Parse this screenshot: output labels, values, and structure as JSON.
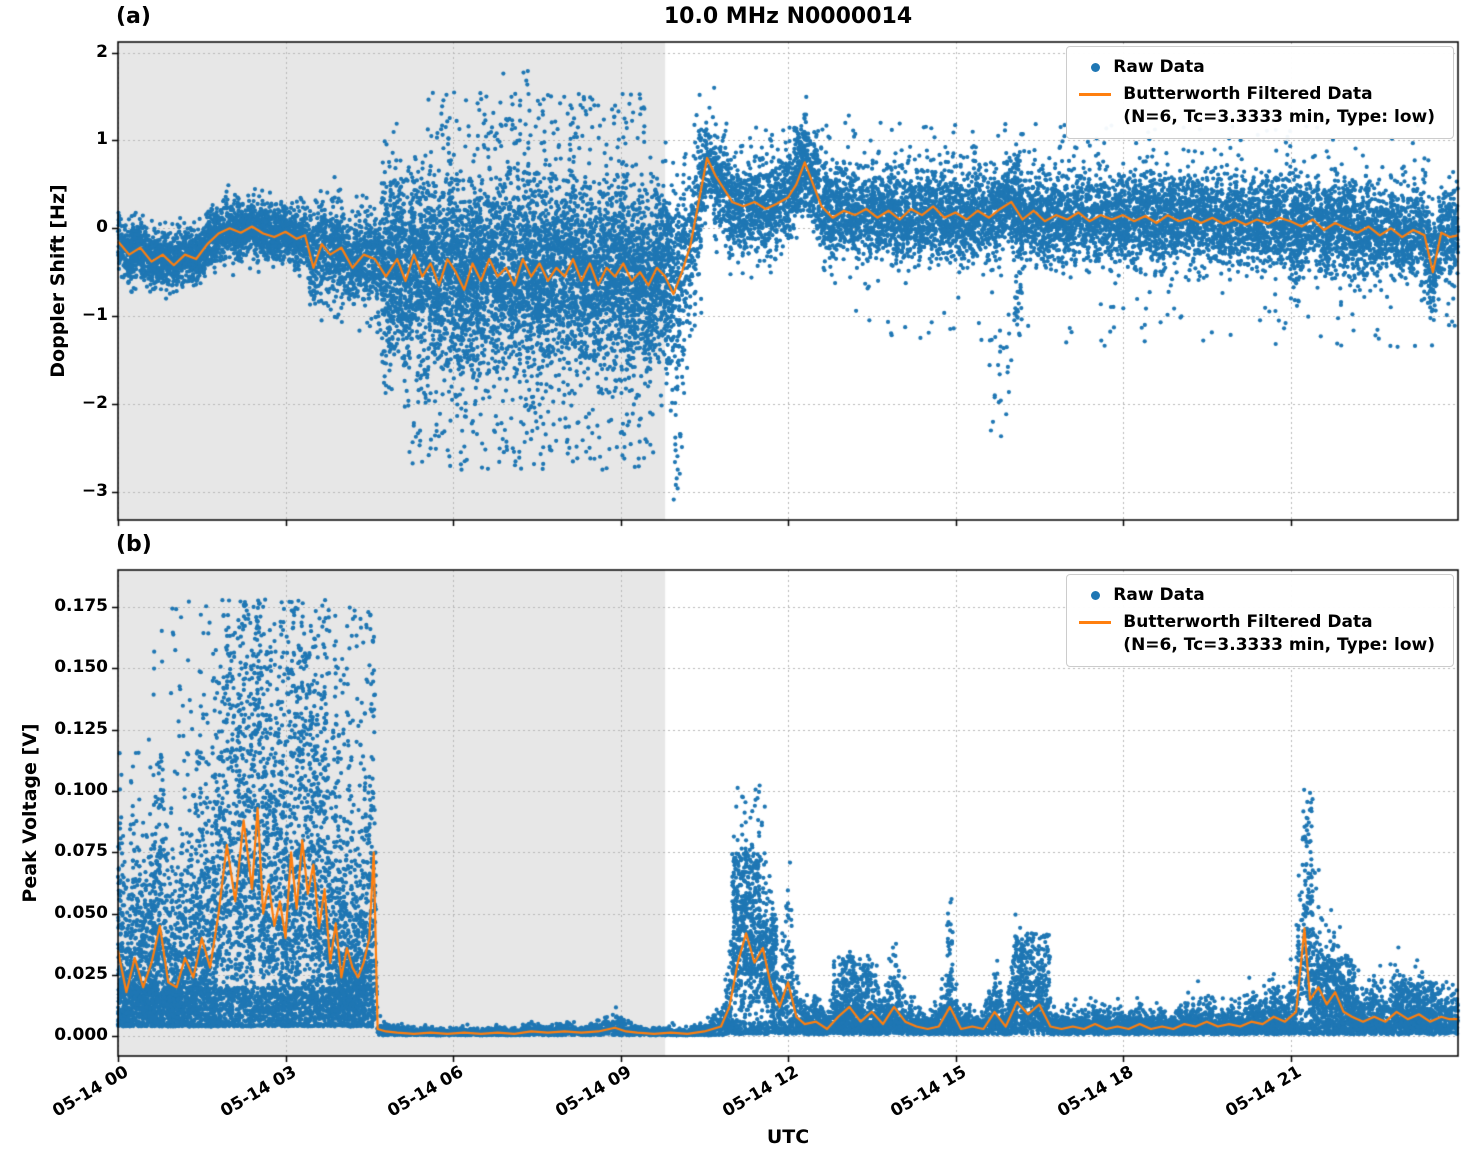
{
  "figure": {
    "title": "10.0 MHz N0000014",
    "xlabel": "UTC",
    "panels": [
      {
        "tag": "(a)",
        "ylabel": "Doppler Shift [Hz]"
      },
      {
        "tag": "(b)",
        "ylabel": "Peak Voltage [V]"
      }
    ],
    "legend": {
      "raw_label": "Raw Data",
      "filtered_label": "Butterworth Filtered Data",
      "filtered_params": "(N=6, Tc=3.3333 min, Type: low)"
    },
    "colors": {
      "raw": "#1f77b4",
      "filtered": "#ff7f0e",
      "shade": "#e7e7e7",
      "grid": "#b8b8b8",
      "spine": "#000000"
    }
  },
  "chart_data": [
    {
      "type": "scatter",
      "panel": "a",
      "title": "10.0 MHz N0000014",
      "ylabel": "Doppler Shift [Hz]",
      "x_unit": "hours after 05-14 00:00 UTC",
      "xlim": [
        0,
        24
      ],
      "ylim": [
        -3.32,
        2.12
      ],
      "yticks": [
        2,
        1,
        0,
        -1,
        -2,
        -3
      ],
      "ytick_labels": [
        "2",
        "1",
        "0",
        "−1",
        "−2",
        "−3"
      ],
      "xticks_hours": [
        0,
        3,
        6,
        9,
        12,
        15,
        18,
        21
      ],
      "xtick_labels": [
        "05-14 00",
        "05-14 03",
        "05-14 06",
        "05-14 09",
        "05-14 12",
        "05-14 15",
        "05-14 18",
        "05-14 21"
      ],
      "shaded_region_hours": [
        0,
        9.8
      ],
      "grid": true,
      "legend_position": "upper right",
      "series": [
        {
          "name": "Raw Data",
          "type": "scatter",
          "color": "#1f77b4",
          "note": "dense noisy cloud around filtered line; reconstructed from envelope",
          "envelope_segments": [
            {
              "x0": 0,
              "x1": 3.4,
              "n": 2600,
              "sd": 0.16
            },
            {
              "x0": 3.4,
              "x1": 4.7,
              "n": 900,
              "sd": 0.28
            },
            {
              "x0": 4.7,
              "x1": 9.95,
              "n": 6000,
              "sd": 0.55
            },
            {
              "x0": 9.95,
              "x1": 10.45,
              "n": 320,
              "sd": 0.5
            },
            {
              "x0": 10.45,
              "x1": 24,
              "n": 9000,
              "sd": 0.27
            }
          ],
          "outlier_clusters": [
            {
              "x0": 5.2,
              "x1": 9.6,
              "n": 260,
              "ymin": -2.75,
              "ymax": -1.3
            },
            {
              "x0": 5.5,
              "x1": 9.5,
              "n": 130,
              "ymin": 0.9,
              "ymax": 1.55
            },
            {
              "x0": 7.25,
              "x1": 7.4,
              "n": 4,
              "ymin": 1.6,
              "ymax": 1.9
            },
            {
              "x0": 9.95,
              "x1": 10.15,
              "n": 30,
              "ymin": -3.1,
              "ymax": -1.2
            },
            {
              "x0": 12.0,
              "x1": 12.6,
              "n": 40,
              "ymin": 0.8,
              "ymax": 1.15
            },
            {
              "x0": 15.6,
              "x1": 16.0,
              "n": 25,
              "ymin": -2.4,
              "ymax": -0.95
            },
            {
              "x0": 13.0,
              "x1": 23.9,
              "n": 70,
              "ymin": -1.35,
              "ymax": -0.85
            },
            {
              "x0": 10.5,
              "x1": 23.9,
              "n": 90,
              "ymin": 0.75,
              "ymax": 1.2
            },
            {
              "x0": 16.05,
              "x1": 16.2,
              "n": 80,
              "ymin": -1.1,
              "ymax": 0.9
            },
            {
              "x0": 21.0,
              "x1": 21.15,
              "n": 60,
              "ymin": -0.9,
              "ymax": 0.8
            }
          ]
        },
        {
          "name": "Butterworth Filtered Data (N=6, Tc=3.3333 min, Type: low)",
          "type": "line",
          "color": "#ff7f0e",
          "x": [
            0,
            0.2,
            0.4,
            0.6,
            0.8,
            1.0,
            1.2,
            1.4,
            1.6,
            1.8,
            2.0,
            2.2,
            2.4,
            2.6,
            2.8,
            3.0,
            3.2,
            3.35,
            3.5,
            3.65,
            3.8,
            4.0,
            4.2,
            4.4,
            4.6,
            4.8,
            5.0,
            5.15,
            5.3,
            5.45,
            5.6,
            5.75,
            5.9,
            6.05,
            6.2,
            6.35,
            6.5,
            6.65,
            6.8,
            6.95,
            7.1,
            7.25,
            7.4,
            7.55,
            7.7,
            7.85,
            8.0,
            8.15,
            8.3,
            8.45,
            8.6,
            8.75,
            8.9,
            9.05,
            9.2,
            9.35,
            9.5,
            9.65,
            9.8,
            9.95,
            10.1,
            10.25,
            10.4,
            10.55,
            10.7,
            10.85,
            11.0,
            11.2,
            11.4,
            11.6,
            11.8,
            12.0,
            12.15,
            12.3,
            12.45,
            12.6,
            12.8,
            13.0,
            13.2,
            13.4,
            13.6,
            13.8,
            14.0,
            14.2,
            14.4,
            14.6,
            14.8,
            15.0,
            15.2,
            15.4,
            15.6,
            15.8,
            16.0,
            16.2,
            16.4,
            16.6,
            16.8,
            17.0,
            17.2,
            17.4,
            17.6,
            17.8,
            18.0,
            18.2,
            18.4,
            18.6,
            18.8,
            19.0,
            19.2,
            19.4,
            19.6,
            19.8,
            20.0,
            20.2,
            20.4,
            20.6,
            20.8,
            21.0,
            21.2,
            21.4,
            21.6,
            21.8,
            22.0,
            22.2,
            22.4,
            22.6,
            22.8,
            23.0,
            23.2,
            23.4,
            23.55,
            23.7,
            23.85,
            24.0
          ],
          "y": [
            -0.15,
            -0.3,
            -0.22,
            -0.38,
            -0.3,
            -0.42,
            -0.3,
            -0.35,
            -0.18,
            -0.06,
            0.0,
            -0.05,
            0.02,
            -0.06,
            -0.1,
            -0.04,
            -0.12,
            -0.08,
            -0.45,
            -0.18,
            -0.3,
            -0.22,
            -0.45,
            -0.3,
            -0.35,
            -0.55,
            -0.35,
            -0.6,
            -0.3,
            -0.55,
            -0.4,
            -0.65,
            -0.35,
            -0.5,
            -0.7,
            -0.4,
            -0.6,
            -0.35,
            -0.55,
            -0.45,
            -0.65,
            -0.35,
            -0.55,
            -0.4,
            -0.6,
            -0.45,
            -0.55,
            -0.35,
            -0.6,
            -0.4,
            -0.65,
            -0.45,
            -0.55,
            -0.4,
            -0.6,
            -0.5,
            -0.65,
            -0.45,
            -0.55,
            -0.75,
            -0.5,
            -0.2,
            0.3,
            0.8,
            0.6,
            0.45,
            0.3,
            0.25,
            0.3,
            0.22,
            0.28,
            0.35,
            0.5,
            0.75,
            0.5,
            0.25,
            0.12,
            0.2,
            0.15,
            0.22,
            0.12,
            0.2,
            0.1,
            0.22,
            0.15,
            0.25,
            0.12,
            0.18,
            0.1,
            0.2,
            0.12,
            0.22,
            0.3,
            0.1,
            0.2,
            0.08,
            0.15,
            0.1,
            0.18,
            0.08,
            0.15,
            0.1,
            0.15,
            0.08,
            0.14,
            0.06,
            0.15,
            0.08,
            0.12,
            0.06,
            0.12,
            0.05,
            0.1,
            0.04,
            0.1,
            0.05,
            0.12,
            0.08,
            0.02,
            0.1,
            -0.02,
            0.06,
            0.0,
            -0.05,
            0.02,
            -0.08,
            0.0,
            -0.1,
            -0.02,
            -0.08,
            -0.5,
            -0.05,
            -0.1,
            -0.08
          ]
        }
      ]
    },
    {
      "type": "scatter",
      "panel": "b",
      "ylabel": "Peak Voltage [V]",
      "xlabel": "UTC",
      "x_unit": "hours after 05-14 00:00 UTC",
      "xlim": [
        0,
        24
      ],
      "ylim": [
        -0.008,
        0.19
      ],
      "yticks": [
        0.175,
        0.15,
        0.125,
        0.1,
        0.075,
        0.05,
        0.025,
        0
      ],
      "ytick_labels": [
        "0.175",
        "0.150",
        "0.125",
        "0.100",
        "0.075",
        "0.050",
        "0.025",
        "0.000"
      ],
      "xticks_hours": [
        0,
        3,
        6,
        9,
        12,
        15,
        18,
        21
      ],
      "xtick_labels": [
        "05-14 00",
        "05-14 03",
        "05-14 06",
        "05-14 09",
        "05-14 12",
        "05-14 15",
        "05-14 18",
        "05-14 21"
      ],
      "shaded_region_hours": [
        0,
        9.8
      ],
      "grid": true,
      "legend_position": "upper right",
      "series": [
        {
          "name": "Raw Data",
          "type": "scatter",
          "color": "#1f77b4",
          "note": "spread proportional to filtered value; reconstructed from envelope",
          "envelope_segments": [
            {
              "x0": 0,
              "x1": 4.62,
              "n": 5200,
              "up": 1.1,
              "dn": 0.55,
              "cap": 0.178,
              "floor": 0.004
            },
            {
              "x0": 4.62,
              "x1": 10.85,
              "n": 2400,
              "up": 0.9,
              "dn": 0.5,
              "cap": 0.012,
              "floor": 0.0004
            },
            {
              "x0": 10.85,
              "x1": 24,
              "n": 6500,
              "up": 1.0,
              "dn": 0.55,
              "cap": 0.105,
              "floor": 0.0008
            }
          ],
          "outlier_clusters": [
            {
              "x0": 0,
              "x1": 4.6,
              "n": 1600,
              "ymin": 0.004,
              "ymax": 0.02
            },
            {
              "x0": 0.9,
              "x1": 4.55,
              "n": 250,
              "ymin": 0.09,
              "ymax": 0.178
            },
            {
              "x0": 11.0,
              "x1": 11.5,
              "n": 320,
              "ymin": 0.025,
              "ymax": 0.075
            },
            {
              "x0": 11.5,
              "x1": 11.8,
              "n": 130,
              "ymin": 0.015,
              "ymax": 0.05
            },
            {
              "x0": 12.8,
              "x1": 13.5,
              "n": 160,
              "ymin": 0.008,
              "ymax": 0.033
            },
            {
              "x0": 14.85,
              "x1": 14.95,
              "n": 45,
              "ymin": 0.01,
              "ymax": 0.057
            },
            {
              "x0": 16.0,
              "x1": 16.7,
              "n": 200,
              "ymin": 0.008,
              "ymax": 0.042
            },
            {
              "x0": 21.25,
              "x1": 21.4,
              "n": 70,
              "ymin": 0.02,
              "ymax": 0.1
            },
            {
              "x0": 21.45,
              "x1": 22.15,
              "n": 220,
              "ymin": 0.006,
              "ymax": 0.033
            },
            {
              "x0": 22.85,
              "x1": 23.6,
              "n": 160,
              "ymin": 0.005,
              "ymax": 0.022
            },
            {
              "x0": 10.85,
              "x1": 24,
              "n": 1800,
              "ymin": 0.001,
              "ymax": 0.006
            }
          ]
        },
        {
          "name": "Butterworth Filtered Data (N=6, Tc=3.3333 min, Type: low)",
          "type": "line",
          "color": "#ff7f0e",
          "x": [
            0,
            0.15,
            0.3,
            0.45,
            0.6,
            0.75,
            0.9,
            1.05,
            1.2,
            1.35,
            1.5,
            1.65,
            1.8,
            1.95,
            2.1,
            2.25,
            2.4,
            2.5,
            2.6,
            2.7,
            2.8,
            2.9,
            3.0,
            3.1,
            3.2,
            3.3,
            3.4,
            3.5,
            3.6,
            3.7,
            3.8,
            3.9,
            4.0,
            4.1,
            4.2,
            4.3,
            4.4,
            4.5,
            4.58,
            4.65,
            4.8,
            5.0,
            5.3,
            5.6,
            5.9,
            6.2,
            6.5,
            6.8,
            7.1,
            7.4,
            7.7,
            8.0,
            8.3,
            8.6,
            8.9,
            9.1,
            9.3,
            9.6,
            9.9,
            10.2,
            10.5,
            10.8,
            10.95,
            11.1,
            11.25,
            11.4,
            11.55,
            11.7,
            11.85,
            12.0,
            12.15,
            12.3,
            12.5,
            12.7,
            12.9,
            13.1,
            13.3,
            13.5,
            13.7,
            13.9,
            14.1,
            14.3,
            14.5,
            14.7,
            14.9,
            15.1,
            15.3,
            15.5,
            15.7,
            15.9,
            16.1,
            16.3,
            16.5,
            16.7,
            16.9,
            17.1,
            17.3,
            17.5,
            17.7,
            17.9,
            18.1,
            18.3,
            18.5,
            18.7,
            18.9,
            19.1,
            19.3,
            19.5,
            19.7,
            19.9,
            20.1,
            20.3,
            20.5,
            20.7,
            20.9,
            21.1,
            21.25,
            21.35,
            21.5,
            21.65,
            21.8,
            21.95,
            22.1,
            22.3,
            22.5,
            22.7,
            22.9,
            23.1,
            23.3,
            23.5,
            23.7,
            23.85,
            24.0
          ],
          "y": [
            0.035,
            0.018,
            0.032,
            0.02,
            0.03,
            0.045,
            0.022,
            0.02,
            0.032,
            0.024,
            0.04,
            0.028,
            0.05,
            0.078,
            0.055,
            0.088,
            0.06,
            0.093,
            0.05,
            0.062,
            0.045,
            0.055,
            0.04,
            0.075,
            0.052,
            0.08,
            0.058,
            0.07,
            0.044,
            0.06,
            0.03,
            0.046,
            0.024,
            0.036,
            0.028,
            0.024,
            0.03,
            0.04,
            0.075,
            0.003,
            0.002,
            0.0015,
            0.001,
            0.0015,
            0.001,
            0.0015,
            0.001,
            0.0015,
            0.001,
            0.002,
            0.0015,
            0.002,
            0.0015,
            0.002,
            0.0035,
            0.002,
            0.0015,
            0.001,
            0.0015,
            0.001,
            0.002,
            0.004,
            0.012,
            0.03,
            0.042,
            0.03,
            0.036,
            0.02,
            0.012,
            0.022,
            0.008,
            0.005,
            0.006,
            0.003,
            0.008,
            0.012,
            0.006,
            0.01,
            0.005,
            0.012,
            0.006,
            0.004,
            0.003,
            0.004,
            0.012,
            0.003,
            0.004,
            0.003,
            0.01,
            0.004,
            0.014,
            0.009,
            0.013,
            0.004,
            0.003,
            0.004,
            0.003,
            0.005,
            0.003,
            0.004,
            0.003,
            0.005,
            0.003,
            0.004,
            0.003,
            0.005,
            0.004,
            0.006,
            0.004,
            0.005,
            0.004,
            0.006,
            0.005,
            0.008,
            0.006,
            0.01,
            0.044,
            0.015,
            0.02,
            0.013,
            0.018,
            0.01,
            0.008,
            0.006,
            0.008,
            0.006,
            0.01,
            0.007,
            0.009,
            0.006,
            0.008,
            0.007,
            0.007
          ]
        }
      ]
    }
  ]
}
